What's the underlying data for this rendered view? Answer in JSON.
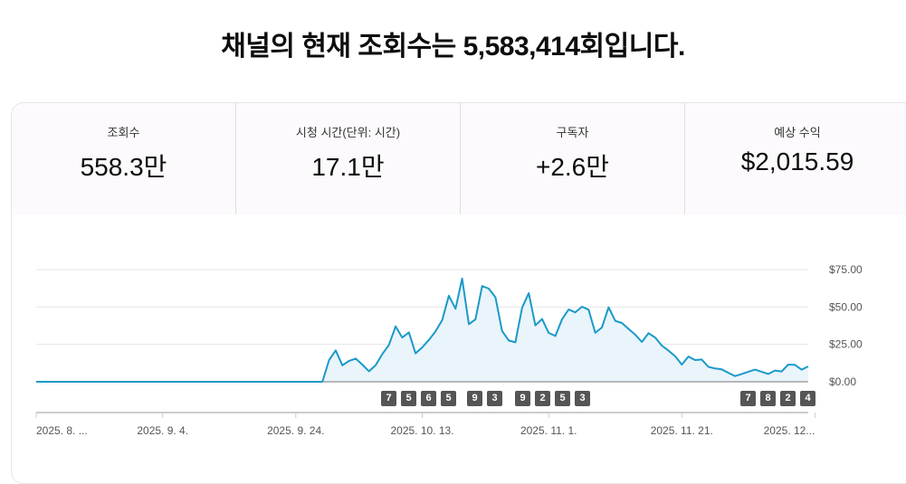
{
  "title": "채널의 현재 조회수는 5,583,414회입니다.",
  "metrics": [
    {
      "label": "조회수",
      "value": "558.3만"
    },
    {
      "label": "시청 시간(단위: 시간)",
      "value": "17.1만"
    },
    {
      "label": "구독자",
      "value": "+2.6만"
    },
    {
      "label": "예상 수익",
      "value": "$2,015.59"
    }
  ],
  "chart_data": {
    "type": "area",
    "title": "예상 수익",
    "ylim": [
      0,
      75
    ],
    "yticks": [
      0,
      25,
      50,
      75
    ],
    "ytick_labels": [
      "$0.00",
      "$25.00",
      "$50.00",
      "$75.00"
    ],
    "xtick_labels": [
      "2025. 8. ...",
      "2025. 9. 4.",
      "2025. 9. 24.",
      "2025. 10. 13.",
      "2025. 11. 1.",
      "2025. 11. 21.",
      "2025. 12..."
    ],
    "xtick_days": [
      0,
      19,
      39,
      58,
      77,
      97,
      117
    ],
    "start_date": "2025-08-16",
    "color": "#1a9ac9",
    "fill": "#eaf4fb",
    "values": [
      0,
      0,
      0,
      0,
      0,
      0,
      0,
      0,
      0,
      0,
      0,
      0,
      0,
      0,
      0,
      0,
      0,
      0,
      0,
      0,
      0,
      0,
      0,
      0,
      0,
      0,
      0,
      0,
      0,
      0,
      0,
      0,
      0,
      0,
      0,
      0,
      0,
      0,
      0,
      0,
      0,
      0,
      0,
      0,
      14.5,
      21,
      11,
      14,
      15.5,
      11.5,
      7,
      11,
      18.5,
      24.6,
      37,
      29.6,
      33,
      19,
      23,
      28,
      33.7,
      41.3,
      57.5,
      48.8,
      69,
      38.5,
      41.7,
      64,
      62.3,
      56.5,
      34,
      27.6,
      26.4,
      49.4,
      59.3,
      37.7,
      42,
      32.7,
      30.6,
      41.7,
      48.4,
      46.4,
      50.2,
      48.2,
      32.7,
      36.3,
      49.8,
      40.7,
      39.3,
      35.3,
      31.5,
      26.6,
      32.5,
      29.6,
      24.2,
      20.8,
      17.1,
      11.5,
      16.9,
      14.5,
      14.9,
      10,
      8.9,
      8.3,
      6,
      3.8,
      5.2,
      6.7,
      8.1,
      6.7,
      5.2,
      7.5,
      6.9,
      11.5,
      11.3,
      8.1,
      10.3
    ]
  },
  "annotations": [
    "7",
    "5",
    "6",
    "5",
    "9",
    "3",
    "9",
    "2",
    "5",
    "3",
    "7",
    "8",
    "2",
    "4"
  ]
}
